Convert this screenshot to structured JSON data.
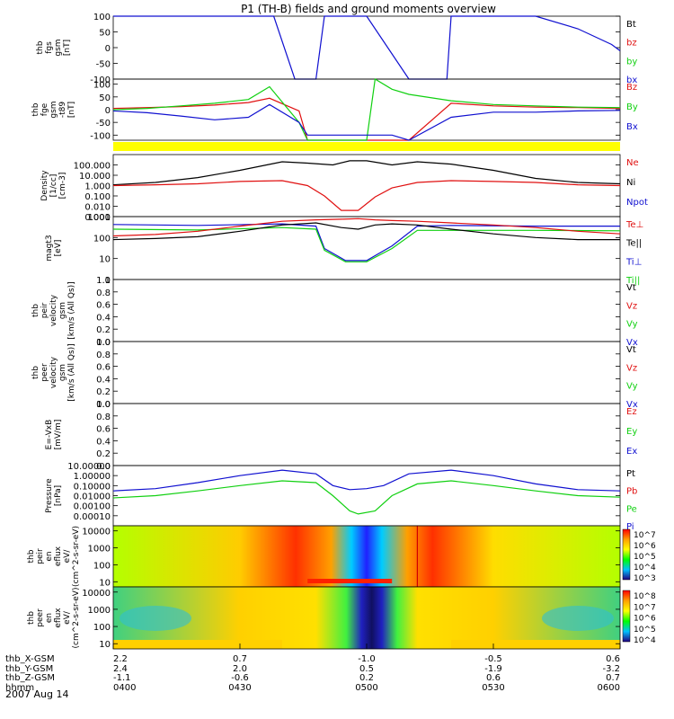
{
  "title": "P1 (TH-B) fields and ground moments overview",
  "date_label": "2007 Aug 14",
  "colors": {
    "black": "#000000",
    "red": "#e01010",
    "green": "#10d010",
    "blue": "#1010d0",
    "yellow": "#ffff00"
  },
  "chart_data": {
    "type": "line",
    "x_axis": {
      "row_labels": [
        "thb_X-GSM",
        "thb_Y-GSM",
        "thb_Z-GSM",
        "hhmm"
      ],
      "ticks": [
        {
          "time": "0400",
          "x_gsm": "2.2",
          "y_gsm": "2.4",
          "z_gsm": "-1.1"
        },
        {
          "time": "0430",
          "x_gsm": "0.7",
          "y_gsm": "2.0",
          "z_gsm": "-0.6"
        },
        {
          "time": "0500",
          "x_gsm": "-1.0",
          "y_gsm": "0.5",
          "z_gsm": "0.2"
        },
        {
          "time": "0530",
          "x_gsm": "-0.5",
          "y_gsm": "-1.9",
          "z_gsm": "0.6"
        },
        {
          "time": "0600",
          "x_gsm": "0.6",
          "y_gsm": "-3.2",
          "z_gsm": "0.7"
        }
      ],
      "range_minutes": [
        0,
        120
      ]
    },
    "panels": [
      {
        "id": "fgs",
        "ylabel": [
          "thb",
          "fgs",
          "gsm",
          "[nT]"
        ],
        "ylim": [
          -100,
          100
        ],
        "yticks": [
          "100",
          "50",
          "0",
          "-50",
          "-100"
        ],
        "legend": [
          {
            "name": "Bt",
            "color": "black"
          },
          {
            "name": "bz",
            "color": "red"
          },
          {
            "name": "by",
            "color": "green"
          },
          {
            "name": "bx",
            "color": "blue"
          }
        ],
        "series": [
          {
            "name": "bx",
            "color": "blue",
            "t": [
              0,
              38,
              43,
              46,
              48,
              50,
              60,
              70,
              79,
              80,
              86,
              92,
              100,
              110,
              118,
              120
            ],
            "v": [
              200,
              150,
              -100,
              -100,
              -100,
              100,
              100,
              -100,
              -100,
              100,
              100,
              100,
              100,
              60,
              10,
              -10
            ]
          }
        ]
      },
      {
        "id": "fge",
        "ylabel": [
          "thb",
          "fge",
          "gsm",
          "-t89",
          "[nT]"
        ],
        "ylim": [
          -120,
          120
        ],
        "yticks": [
          "100",
          "50",
          "0",
          "-50",
          "-100"
        ],
        "legend": [
          {
            "name": "Bz",
            "color": "red"
          },
          {
            "name": "By",
            "color": "green"
          },
          {
            "name": "Bx",
            "color": "blue"
          }
        ],
        "series": [
          {
            "name": "Bz",
            "color": "red",
            "t": [
              0,
              8,
              16,
              24,
              32,
              37,
              44,
              46,
              62,
              66,
              70,
              80,
              90,
              100,
              110,
              120
            ],
            "v": [
              5,
              8,
              12,
              18,
              28,
              45,
              -5,
              -120,
              -120,
              -120,
              -120,
              25,
              15,
              10,
              8,
              5
            ]
          },
          {
            "name": "By",
            "color": "green",
            "t": [
              0,
              8,
              16,
              24,
              32,
              37,
              44,
              46,
              60,
              62,
              66,
              70,
              80,
              90,
              100,
              110,
              120
            ],
            "v": [
              0,
              5,
              15,
              25,
              40,
              90,
              -50,
              -120,
              -120,
              120,
              80,
              60,
              35,
              20,
              15,
              10,
              8
            ]
          },
          {
            "name": "Bx",
            "color": "blue",
            "t": [
              0,
              8,
              16,
              24,
              32,
              37,
              44,
              46,
              64,
              66,
              70,
              80,
              90,
              100,
              110,
              120
            ],
            "v": [
              -5,
              -12,
              -25,
              -40,
              -30,
              20,
              -50,
              -100,
              -100,
              -100,
              -120,
              -30,
              -10,
              -10,
              -5,
              -3
            ]
          }
        ]
      },
      {
        "id": "density",
        "ylabel": [
          "Density",
          "[1/cc]",
          "[cm-3]"
        ],
        "ylim": [
          0.001,
          1000
        ],
        "log": true,
        "yticks": [
          "100.000",
          "10.000",
          "1.000",
          "0.100",
          "0.010",
          "0.001"
        ],
        "legend": [
          {
            "name": "Ne",
            "color": "red"
          },
          {
            "name": "Ni",
            "color": "black"
          },
          {
            "name": "Npot",
            "color": "blue"
          }
        ],
        "series": [
          {
            "name": "Ni",
            "color": "black",
            "t": [
              0,
              10,
              20,
              30,
              40,
              46,
              52,
              56,
              60,
              66,
              72,
              80,
              90,
              100,
              110,
              120
            ],
            "v": [
              1.2,
              2,
              6,
              30,
              200,
              150,
              100,
              250,
              250,
              100,
              200,
              120,
              30,
              5,
              2,
              1.5
            ]
          },
          {
            "name": "Ne",
            "color": "red",
            "t": [
              0,
              10,
              20,
              30,
              40,
              46,
              50,
              54,
              58,
              62,
              66,
              72,
              80,
              90,
              100,
              110,
              120
            ],
            "v": [
              1,
              1.2,
              1.5,
              2.5,
              3,
              1,
              0.1,
              0.004,
              0.004,
              0.08,
              0.6,
              2,
              3,
              2.5,
              2,
              1.2,
              1
            ]
          }
        ]
      },
      {
        "id": "temperature",
        "ylabel": [
          "magt3",
          "[eV]"
        ],
        "ylim": [
          1,
          1000
        ],
        "log": true,
        "yticks": [
          "1000",
          "100",
          "10",
          "1"
        ],
        "legend": [
          {
            "name": "Te⊥",
            "color": "red"
          },
          {
            "name": "Te||",
            "color": "black"
          },
          {
            "name": "Ti⊥",
            "color": "blue"
          },
          {
            "name": "Ti||",
            "color": "green"
          }
        ],
        "series": [
          {
            "name": "Ti⊥",
            "color": "blue",
            "t": [
              0,
              20,
              40,
              48,
              50,
              55,
              58,
              60,
              66,
              72,
              80,
              100,
              120
            ],
            "v": [
              420,
              380,
              450,
              350,
              30,
              8,
              8,
              8,
              40,
              350,
              380,
              350,
              350
            ]
          },
          {
            "name": "Ti||",
            "color": "green",
            "t": [
              0,
              20,
              40,
              48,
              50,
              55,
              58,
              60,
              66,
              72,
              80,
              100,
              120
            ],
            "v": [
              250,
              230,
              300,
              250,
              25,
              7,
              7,
              7,
              30,
              220,
              220,
              220,
              210
            ]
          },
          {
            "name": "Te⊥",
            "color": "red",
            "t": [
              0,
              10,
              20,
              30,
              40,
              48,
              54,
              58,
              62,
              66,
              72,
              80,
              90,
              100,
              110,
              120
            ],
            "v": [
              120,
              140,
              200,
              350,
              600,
              700,
              750,
              800,
              700,
              650,
              600,
              500,
              400,
              300,
              200,
              150
            ]
          },
          {
            "name": "Te||",
            "color": "black",
            "t": [
              0,
              10,
              20,
              30,
              40,
              48,
              54,
              58,
              62,
              66,
              72,
              80,
              90,
              100,
              110,
              120
            ],
            "v": [
              80,
              90,
              110,
              200,
              400,
              500,
              300,
              250,
              400,
              450,
              400,
              250,
              150,
              100,
              80,
              80
            ]
          }
        ]
      },
      {
        "id": "peir_velocity",
        "ylabel": [
          "thb",
          "peir",
          "velocity",
          "gsm",
          "[km/s (All Qs)]"
        ],
        "ylim": [
          0,
          1
        ],
        "yticks": [
          "1.0",
          "0.8",
          "0.6",
          "0.4",
          "0.2",
          "0.0"
        ],
        "legend": [
          {
            "name": "Vt",
            "color": "black"
          },
          {
            "name": "Vz",
            "color": "red"
          },
          {
            "name": "Vy",
            "color": "green"
          },
          {
            "name": "Vx",
            "color": "blue"
          }
        ],
        "series": []
      },
      {
        "id": "peer_velocity",
        "ylabel": [
          "thb",
          "peer",
          "velocity",
          "gsm",
          "[km/s (All Qs)]"
        ],
        "ylim": [
          0,
          1
        ],
        "yticks": [
          "1.0",
          "0.8",
          "0.6",
          "0.4",
          "0.2",
          "0.0"
        ],
        "legend": [
          {
            "name": "Vt",
            "color": "black"
          },
          {
            "name": "Vz",
            "color": "red"
          },
          {
            "name": "Vy",
            "color": "green"
          },
          {
            "name": "Vx",
            "color": "blue"
          }
        ],
        "series": []
      },
      {
        "id": "efield",
        "ylabel": [
          "E=-VxB",
          "[mV/m]"
        ],
        "ylim": [
          0,
          1
        ],
        "yticks": [
          "1.0",
          "0.8",
          "0.6",
          "0.4",
          "0.2",
          "0.0"
        ],
        "legend": [
          {
            "name": "Ez",
            "color": "red"
          },
          {
            "name": "Ey",
            "color": "green"
          },
          {
            "name": "Ex",
            "color": "blue"
          }
        ],
        "series": []
      },
      {
        "id": "pressure",
        "ylabel": [
          "Pressure",
          "[nPa]"
        ],
        "ylim": [
          1e-05,
          10
        ],
        "log": true,
        "yticks": [
          "10.00000",
          "1.00000",
          "0.10000",
          "0.01000",
          "0.00100",
          "0.00010"
        ],
        "legend": [
          {
            "name": "Pt",
            "color": "black"
          },
          {
            "name": "Pb",
            "color": "red"
          },
          {
            "name": "Pe",
            "color": "green"
          },
          {
            "name": "Pi",
            "color": "blue"
          }
        ],
        "series": [
          {
            "name": "Pi",
            "color": "blue",
            "t": [
              0,
              10,
              20,
              30,
              40,
              48,
              52,
              56,
              60,
              64,
              70,
              80,
              90,
              100,
              110,
              120
            ],
            "v": [
              0.03,
              0.05,
              0.2,
              1,
              3.5,
              1.5,
              0.1,
              0.04,
              0.05,
              0.1,
              1.5,
              3.5,
              1,
              0.15,
              0.04,
              0.03
            ]
          },
          {
            "name": "Pe",
            "color": "green",
            "t": [
              0,
              10,
              20,
              30,
              40,
              48,
              52,
              56,
              58,
              62,
              66,
              72,
              80,
              90,
              100,
              110,
              120
            ],
            "v": [
              0.006,
              0.01,
              0.03,
              0.1,
              0.3,
              0.2,
              0.01,
              0.0003,
              0.00015,
              0.0003,
              0.01,
              0.15,
              0.3,
              0.1,
              0.03,
              0.01,
              0.007
            ]
          }
        ]
      },
      {
        "id": "peir_eflux",
        "ylabel": [
          "thb",
          "peir",
          "en",
          "eflux",
          "eV/",
          "(cm^2-s-sr-eV)"
        ],
        "type": "heatmap",
        "ylim": [
          5,
          20000
        ],
        "log": true,
        "yticks": [
          "10000",
          "1000",
          "100",
          "10"
        ],
        "colorbar_ticks": [
          "10^7",
          "10^6",
          "10^5",
          "10^4",
          "10^3"
        ]
      },
      {
        "id": "peer_eflux",
        "ylabel": [
          "thb",
          "peer",
          "en",
          "eflux",
          "eV/",
          "(cm^2-s-sr-eV)"
        ],
        "type": "heatmap",
        "ylim": [
          5,
          20000
        ],
        "log": true,
        "yticks": [
          "10000",
          "1000",
          "100",
          "10"
        ],
        "colorbar_ticks": [
          "10^8",
          "10^7",
          "10^6",
          "10^5",
          "10^4"
        ]
      }
    ]
  }
}
